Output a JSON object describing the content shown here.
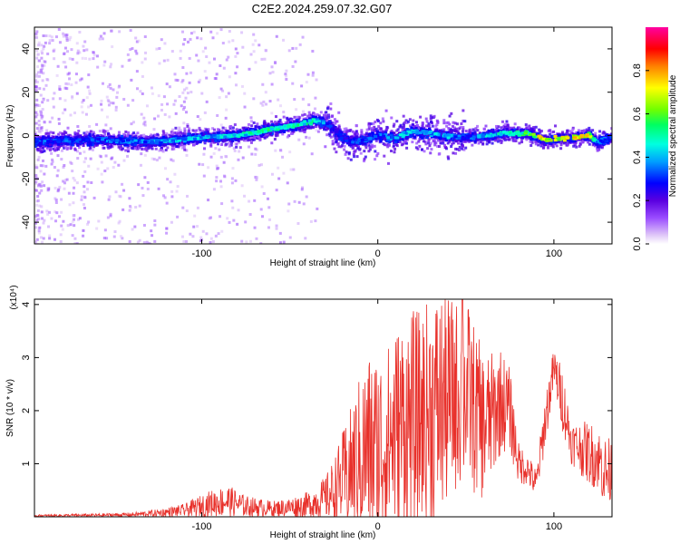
{
  "title": "C2E2.2024.259.07.32.G07",
  "chart_data": [
    {
      "type": "heatmap",
      "xlabel": "Height of straight line (km)",
      "ylabel": "Frequency (Hz)",
      "xlim": [
        -195,
        133
      ],
      "ylim": [
        -50,
        50
      ],
      "x_ticks": [
        -100,
        0,
        100
      ],
      "y_ticks": [
        -40,
        -20,
        0,
        20,
        40
      ],
      "colorbar": {
        "label": "Normalized spectral amplitude",
        "range": [
          0,
          1
        ],
        "ticks": [
          "0.0",
          "0.2",
          "0.4",
          "0.6",
          "0.8"
        ],
        "colormap": [
          "#ffffff",
          "#e0c8f8",
          "#9a4cff",
          "#5a00e0",
          "#0000ff",
          "#00a0ff",
          "#00ffe0",
          "#00ff60",
          "#70ff00",
          "#ffff00",
          "#ff8000",
          "#ff0000",
          "#ff00a0"
        ]
      },
      "ridge": {
        "x": [
          -195,
          -160,
          -130,
          -100,
          -80,
          -60,
          -45,
          -35,
          -28,
          -20,
          -15,
          -8,
          0,
          10,
          20,
          30,
          40,
          50,
          60,
          70,
          85,
          95,
          110,
          120,
          125,
          133
        ],
        "y": [
          -3,
          -2,
          -3,
          -1,
          0,
          3,
          5,
          7,
          5,
          -1,
          -3,
          -2,
          0,
          -1,
          2,
          1,
          0,
          -1,
          0,
          1,
          1,
          -2,
          -1,
          0,
          -3,
          -1
        ],
        "amplitude": [
          0.35,
          0.35,
          0.4,
          0.45,
          0.5,
          0.55,
          0.55,
          0.5,
          0.35,
          0.3,
          0.35,
          0.35,
          0.35,
          0.45,
          0.45,
          0.45,
          0.45,
          0.35,
          0.45,
          0.5,
          0.6,
          0.8,
          0.85,
          0.8,
          0.4,
          0.35
        ]
      }
    },
    {
      "type": "line",
      "xlabel": "Height of straight line (km)",
      "ylabel": "SNR (10 * v/v)",
      "y_multiplier": "(x10⁴)",
      "xlim": [
        -195,
        133
      ],
      "ylim": [
        0,
        41000
      ],
      "x_ticks": [
        -100,
        0,
        100
      ],
      "y_ticks": [
        1,
        2,
        3,
        4
      ],
      "series": [
        {
          "color": "#e8302a",
          "x": [
            -195,
            -180,
            -160,
            -140,
            -125,
            -110,
            -95,
            -85,
            -75,
            -60,
            -50,
            -40,
            -30,
            -25,
            -20,
            -15,
            -10,
            -5,
            0,
            5,
            10,
            15,
            20,
            25,
            30,
            35,
            40,
            45,
            50,
            55,
            60,
            65,
            70,
            75,
            80,
            85,
            90,
            95,
            100,
            105,
            110,
            115,
            120,
            125,
            130,
            133
          ],
          "y": [
            200,
            250,
            300,
            400,
            700,
            1200,
            2500,
            3000,
            2000,
            1500,
            1800,
            2200,
            3500,
            5000,
            7000,
            9000,
            11000,
            13000,
            12000,
            14000,
            16000,
            18000,
            17000,
            19000,
            20000,
            21000,
            22000,
            23000,
            24000,
            20000,
            17000,
            19000,
            22000,
            20000,
            10000,
            9000,
            6000,
            18000,
            28000,
            22000,
            14000,
            13000,
            12000,
            11000,
            8000,
            9000
          ],
          "spread": [
            200,
            250,
            300,
            400,
            700,
            1200,
            2500,
            3000,
            2000,
            1500,
            1800,
            2500,
            4000,
            6000,
            9000,
            12000,
            16000,
            18000,
            20000,
            18000,
            20000,
            20000,
            22000,
            20000,
            22000,
            22000,
            20000,
            18000,
            18000,
            16000,
            14000,
            12000,
            10000,
            8000,
            4000,
            3000,
            3000,
            5000,
            4000,
            6000,
            4000,
            5000,
            6000,
            6000,
            7000,
            6000
          ],
          "peak": {
            "x": 48,
            "y": 41000
          }
        }
      ]
    }
  ]
}
